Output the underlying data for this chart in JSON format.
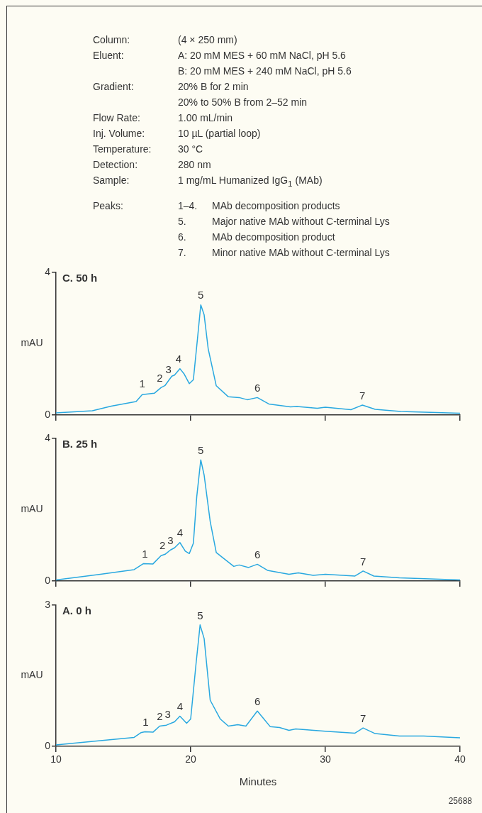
{
  "chart_data": [
    {
      "type": "other",
      "annotations": [
        "Column:\t(4 × 250 mm)",
        "Eluent:\tA: 20 mM MES + 60 mM NaCl, pH 5.6",
        "\tB: 20 mM MES + 240 mM NaCl, pH 5.6",
        "Gradient:\t20% B for 2 min",
        "\t20% to 50% B from 2–52 min",
        "Flow Rate:\t1.00 mL/min",
        "Inj. Volume:\t10 µL (partial loop)",
        "Temperature:\t30 °C",
        "Detection:\t280 nm",
        "Sample:\t1 mg/mL Humanized IgG$_{1}$ (MAb)",
        "Peaks:\t1–4.\tMAb decomposition products",
        "\t5.\tMajor native MAb without C-terminal Lys",
        "\t6.\tMAb decomposition product",
        "\t7.\tMinor native MAb without C-terminal Lys"
      ]
    },
    {
      "type": "line",
      "title": "C. 50 h",
      "ylabel": "mAU",
      "xlim": [
        10,
        40
      ],
      "xticks": [
        10,
        20,
        30,
        40
      ],
      "ylim": [
        0,
        4
      ],
      "yticks": [
        0,
        4
      ],
      "tick_labels": "y",
      "grid": false,
      "legend": false,
      "marker": "none",
      "x": [
        10,
        12.7,
        14.1,
        15.95,
        16.4,
        17.3,
        17.8,
        18.1,
        18.6,
        18.8,
        19.2,
        19.5,
        19.9,
        20.2,
        20.5,
        20.75,
        21.0,
        21.3,
        21.9,
        22.8,
        23.6,
        24.2,
        24.95,
        25.8,
        27.4,
        27.9,
        29.4,
        30.0,
        31.9,
        32.75,
        33.7,
        35.6,
        40
      ],
      "series": [
        {
          "color": "#29a8e0",
          "values": [
            0.06,
            0.12,
            0.25,
            0.38,
            0.57,
            0.61,
            0.77,
            0.83,
            1.09,
            1.12,
            1.3,
            1.16,
            0.88,
            0.99,
            2.12,
            3.09,
            2.81,
            1.86,
            0.82,
            0.51,
            0.49,
            0.43,
            0.49,
            0.31,
            0.23,
            0.24,
            0.19,
            0.22,
            0.15,
            0.28,
            0.16,
            0.1,
            0.05
          ]
        }
      ],
      "annotations": [
        {
          "text": "1",
          "x": 16.4,
          "y": 0.6
        },
        {
          "text": "2",
          "x": 17.7,
          "y": 0.77
        },
        {
          "text": "3",
          "x": 18.35,
          "y": 1.0
        },
        {
          "text": "4",
          "x": 19.1,
          "y": 1.3
        },
        {
          "text": "5",
          "x": 20.75,
          "y": 3.09
        },
        {
          "text": "6",
          "x": 24.95,
          "y": 0.49
        },
        {
          "text": "7",
          "x": 32.75,
          "y": 0.28
        }
      ]
    },
    {
      "type": "line",
      "title": "B. 25 h",
      "ylabel": "mAU",
      "xlim": [
        10,
        40
      ],
      "xticks": [
        10,
        20,
        30,
        40
      ],
      "ylim": [
        0,
        4
      ],
      "yticks": [
        0,
        4
      ],
      "tick_labels": "y",
      "grid": false,
      "legend": false,
      "marker": "none",
      "x": [
        10,
        13.3,
        15.8,
        16.5,
        17.2,
        17.8,
        18.1,
        18.5,
        18.8,
        19.2,
        19.6,
        19.9,
        20.2,
        20.45,
        20.75,
        21.0,
        21.45,
        21.9,
        23.2,
        23.6,
        24.3,
        24.95,
        25.7,
        27.3,
        28.0,
        29.1,
        30.0,
        32.2,
        32.8,
        33.6,
        35.5,
        40
      ],
      "series": [
        {
          "color": "#29a8e0",
          "values": [
            0.03,
            0.19,
            0.32,
            0.49,
            0.48,
            0.71,
            0.75,
            0.87,
            0.93,
            1.08,
            0.84,
            0.77,
            1.06,
            2.36,
            3.4,
            2.97,
            1.67,
            0.8,
            0.41,
            0.45,
            0.38,
            0.47,
            0.3,
            0.19,
            0.23,
            0.16,
            0.19,
            0.14,
            0.28,
            0.14,
            0.09,
            0.03
          ]
        }
      ],
      "annotations": [
        {
          "text": "1",
          "x": 16.6,
          "y": 0.49
        },
        {
          "text": "2",
          "x": 17.9,
          "y": 0.72
        },
        {
          "text": "3",
          "x": 18.5,
          "y": 0.87
        },
        {
          "text": "4",
          "x": 19.2,
          "y": 1.08
        },
        {
          "text": "5",
          "x": 20.75,
          "y": 3.4
        },
        {
          "text": "6",
          "x": 24.95,
          "y": 0.47
        },
        {
          "text": "7",
          "x": 32.8,
          "y": 0.28
        }
      ]
    },
    {
      "type": "line",
      "title": "A. 0 h",
      "xlabel": "Minutes",
      "ylabel": "mAU",
      "xlim": [
        10,
        40
      ],
      "xticks": [
        10,
        20,
        30,
        40
      ],
      "ylim": [
        0,
        3
      ],
      "yticks": [
        0,
        3
      ],
      "grid": false,
      "legend": false,
      "marker": "none",
      "x": [
        10,
        13.3,
        15.8,
        16.3,
        16.6,
        17.2,
        17.7,
        18.2,
        18.8,
        19.2,
        19.7,
        20.0,
        20.4,
        20.7,
        21.0,
        21.45,
        22.2,
        22.8,
        23.5,
        24.1,
        24.95,
        25.9,
        26.6,
        27.3,
        27.8,
        30.0,
        32.2,
        32.8,
        33.7,
        35.5,
        37.3,
        40
      ],
      "series": [
        {
          "color": "#29a8e0",
          "values": [
            0.03,
            0.12,
            0.19,
            0.29,
            0.31,
            0.3,
            0.43,
            0.45,
            0.52,
            0.64,
            0.49,
            0.58,
            1.76,
            2.58,
            2.29,
            0.98,
            0.58,
            0.43,
            0.46,
            0.43,
            0.75,
            0.42,
            0.4,
            0.34,
            0.37,
            0.32,
            0.28,
            0.39,
            0.27,
            0.22,
            0.22,
            0.18
          ]
        }
      ],
      "annotations": [
        {
          "text": "1",
          "x": 16.65,
          "y": 0.31
        },
        {
          "text": "2",
          "x": 17.7,
          "y": 0.43
        },
        {
          "text": "3",
          "x": 18.3,
          "y": 0.47
        },
        {
          "text": "4",
          "x": 19.2,
          "y": 0.64
        },
        {
          "text": "5",
          "x": 20.7,
          "y": 2.58
        },
        {
          "text": "6",
          "x": 24.95,
          "y": 0.75
        },
        {
          "text": "7",
          "x": 32.8,
          "y": 0.39
        },
        "25688"
      ]
    }
  ]
}
